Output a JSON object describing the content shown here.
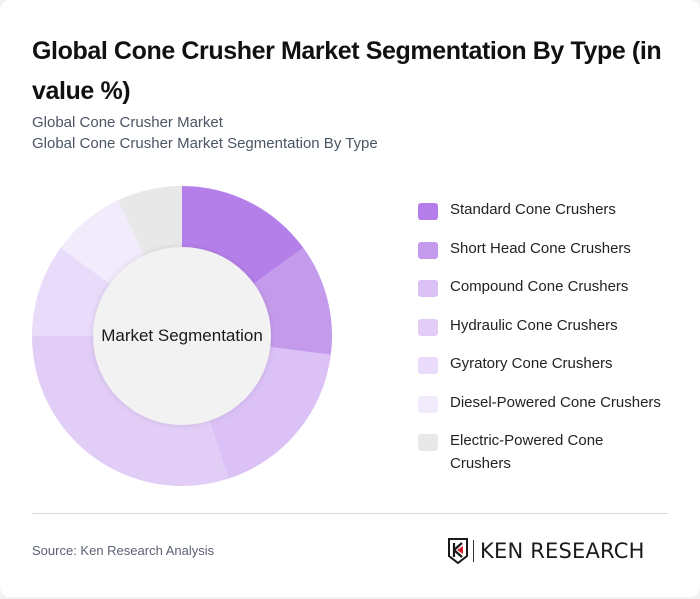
{
  "header": {
    "title": "Global Cone Crusher Market Segmentation By Type (in value %)",
    "subtitle_line1": "Global Cone Crusher Market",
    "subtitle_line2": "Global Cone Crusher Market Segmentation By Type"
  },
  "chart": {
    "center_label": "Market Segmentation"
  },
  "legend": {
    "items": [
      {
        "label": "Standard Cone Crushers",
        "color": "#b57fe9"
      },
      {
        "label": "Short Head Cone Crushers",
        "color": "#c49bec"
      },
      {
        "label": "Compound Cone Crushers",
        "color": "#dbc1f6"
      },
      {
        "label": "Hydraulic Cone Crushers",
        "color": "#e2cdf7"
      },
      {
        "label": "Gyratory Cone Crushers",
        "color": "#e9dbfa"
      },
      {
        "label": "Diesel-Powered Cone Crushers",
        "color": "#f2ebfc"
      },
      {
        "label": "Electric-Powered Cone Crushers",
        "color": "#e8e8e8"
      }
    ]
  },
  "footer": {
    "source": "Source: Ken Research Analysis",
    "logo_text": "KEN RESEARCH"
  },
  "chart_data": {
    "type": "pie",
    "variant": "donut",
    "title": "Global Cone Crusher Market Segmentation By Type (in value %)",
    "subtitle": "Global Cone Crusher Market / Global Cone Crusher Market Segmentation By Type",
    "center_label": "Market Segmentation",
    "categories": [
      "Standard Cone Crushers",
      "Short Head Cone Crushers",
      "Compound Cone Crushers",
      "Hydraulic Cone Crushers",
      "Gyratory Cone Crushers",
      "Diesel-Powered Cone Crushers",
      "Electric-Powered Cone Crushers"
    ],
    "values": [
      15,
      12,
      18,
      30,
      10,
      8,
      7
    ],
    "colors": [
      "#b57fe9",
      "#c49bec",
      "#dbc1f6",
      "#e2cdf7",
      "#e9dbfa",
      "#f2ebfc",
      "#e8e8e8"
    ],
    "unit": "%",
    "start_angle": "12 o'clock, clockwise",
    "legend_position": "right",
    "source": "Source: Ken Research Analysis"
  }
}
